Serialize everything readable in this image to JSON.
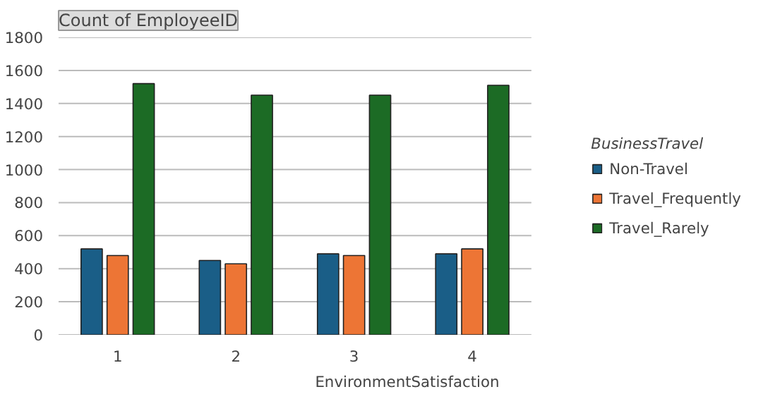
{
  "chart_data": {
    "type": "bar",
    "title": "Count of EmployeeID",
    "xlabel": "EnvironmentSatisfaction",
    "legend_title": "BusinessTravel",
    "categories": [
      "1",
      "2",
      "3",
      "4"
    ],
    "series": [
      {
        "name": "Non-Travel",
        "color": "#1a5e87",
        "values": [
          520,
          450,
          490,
          490
        ]
      },
      {
        "name": "Travel_Frequently",
        "color": "#ed7535",
        "values": [
          480,
          430,
          480,
          520
        ]
      },
      {
        "name": "Travel_Rarely",
        "color": "#1c6b25",
        "values": [
          1520,
          1450,
          1450,
          1510
        ]
      }
    ],
    "ylim": [
      0,
      1800
    ],
    "yticks": [
      0,
      200,
      400,
      600,
      800,
      1000,
      1200,
      1400,
      1600,
      1800
    ],
    "grid": "y",
    "legend": "right"
  }
}
